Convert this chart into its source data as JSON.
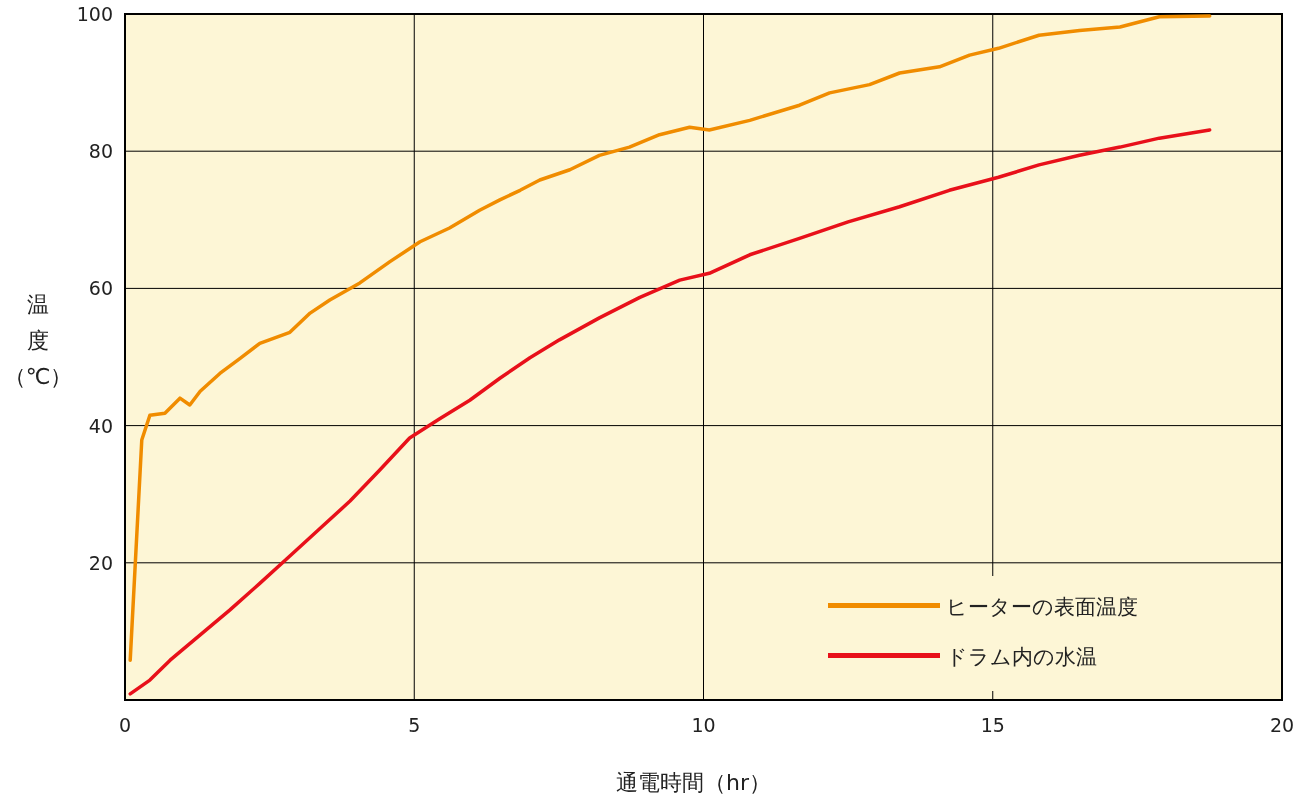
{
  "chart_data": {
    "type": "line",
    "xlabel": "通電時間（hr）",
    "ylabel": "温度（℃）",
    "xlim": [
      0,
      20
    ],
    "xticks": [
      0,
      5,
      10,
      15,
      20
    ],
    "ylim": [
      0,
      100
    ],
    "yticks": [
      20,
      40,
      60,
      80,
      100
    ],
    "grid": true,
    "legend": "bottom right",
    "line_style": "solid",
    "marker": "none",
    "series": [
      {
        "name": "ヒーターの表面温度",
        "color": "#f08c00",
        "x": [
          0.09,
          0.29,
          0.43,
          0.69,
          0.95,
          1.12,
          1.3,
          1.64,
          1.99,
          2.33,
          2.85,
          3.2,
          3.54,
          4.06,
          4.58,
          5.1,
          5.61,
          6.13,
          6.48,
          6.83,
          7.17,
          7.69,
          8.2,
          8.72,
          9.24,
          9.76,
          10.1,
          10.8,
          11.66,
          12.18,
          12.87,
          13.39,
          14.08,
          14.6,
          15.1,
          15.8,
          16.5,
          17.2,
          17.88,
          18.75
        ],
        "values": [
          5.8,
          37.9,
          41.5,
          41.8,
          44,
          43,
          45,
          47.6,
          49.8,
          52,
          53.6,
          56.4,
          58.3,
          60.8,
          63.9,
          66.8,
          68.8,
          71.4,
          72.9,
          74.3,
          75.8,
          77.3,
          79.4,
          80.6,
          82.4,
          83.5,
          83.1,
          84.5,
          86.7,
          88.5,
          89.7,
          91.4,
          92.3,
          94,
          95,
          96.9,
          97.6,
          98.1,
          99.6,
          99.7
        ]
      },
      {
        "name": "ドラム内の水温",
        "color": "#e8101a",
        "x": [
          0.09,
          0.43,
          0.78,
          1.3,
          1.81,
          2.33,
          2.85,
          3.37,
          3.89,
          4.4,
          4.92,
          5.44,
          5.96,
          6.48,
          7.0,
          7.51,
          8.2,
          8.9,
          9.59,
          10.1,
          10.8,
          11.66,
          12.5,
          13.39,
          14.25,
          15.1,
          15.8,
          16.5,
          17.2,
          17.88,
          18.75
        ],
        "values": [
          0.9,
          2.9,
          5.8,
          9.5,
          13.1,
          17,
          21,
          25,
          29,
          33.5,
          38.2,
          41,
          43.7,
          46.9,
          49.9,
          52.5,
          55.7,
          58.7,
          61.2,
          62.2,
          64.9,
          67.3,
          69.7,
          71.9,
          74.3,
          76.2,
          78,
          79.4,
          80.6,
          81.9,
          83.1
        ]
      }
    ]
  }
}
